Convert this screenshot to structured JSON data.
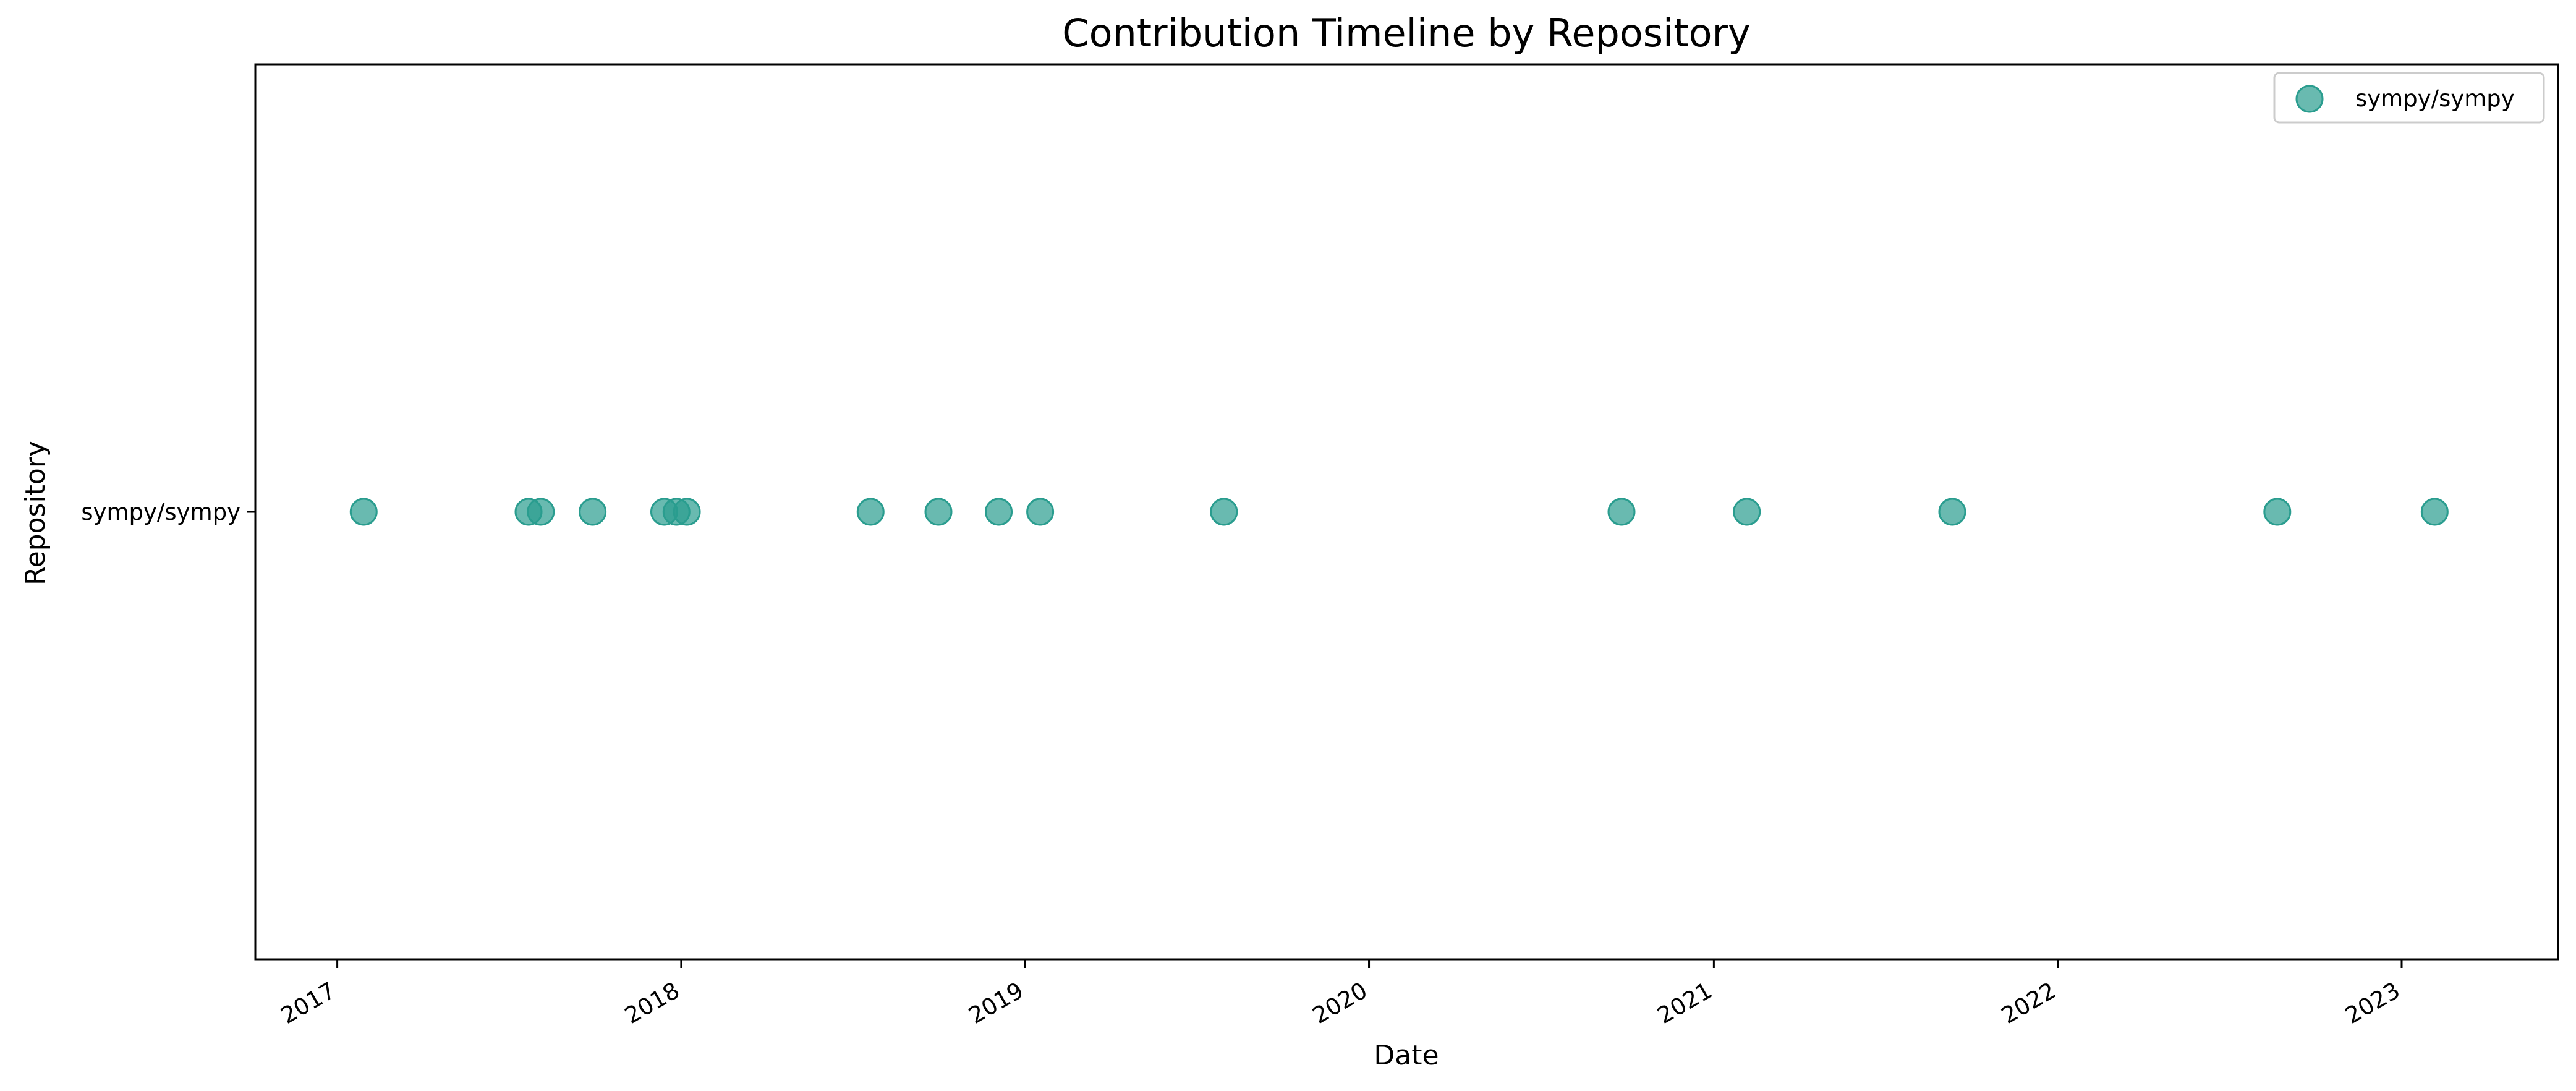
{
  "chart_data": {
    "type": "scatter",
    "title": "Contribution Timeline by Repository",
    "xlabel": "Date",
    "ylabel": "Repository",
    "x_axis_type": "date",
    "xlim": [
      "2016-10-06",
      "2023-06-16"
    ],
    "x_ticks": [
      "2017",
      "2018",
      "2019",
      "2020",
      "2021",
      "2022",
      "2023"
    ],
    "categories": [
      "sympy/sympy"
    ],
    "grid": false,
    "legend_placement": "top-right",
    "series": [
      {
        "name": "sympy/sympy",
        "color": "#2a9d8f",
        "category": "sympy/sympy",
        "x": [
          "2017-01-29",
          "2017-07-23",
          "2017-08-05",
          "2017-09-29",
          "2017-12-14",
          "2017-12-27",
          "2018-01-07",
          "2018-07-21",
          "2018-10-01",
          "2018-12-04",
          "2019-01-17",
          "2019-07-31",
          "2020-09-25",
          "2021-02-05",
          "2021-09-11",
          "2022-08-22",
          "2023-02-05"
        ]
      }
    ]
  }
}
